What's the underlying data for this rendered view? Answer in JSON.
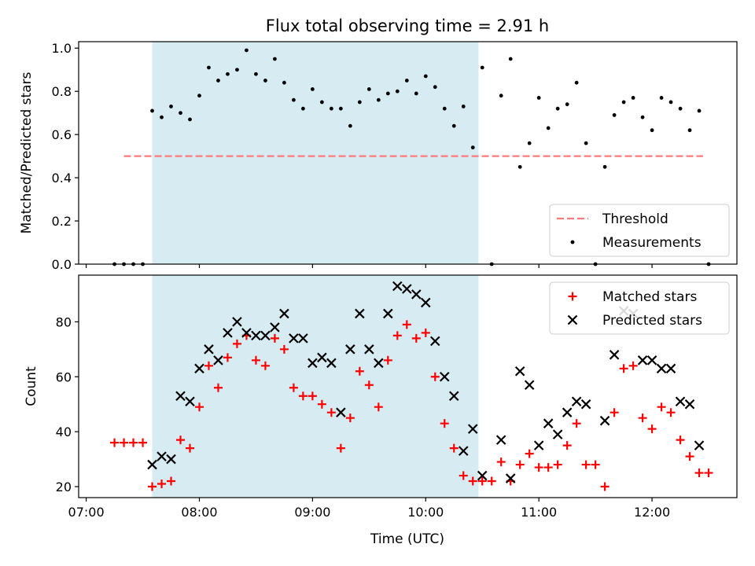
{
  "chart_data": {
    "title": "Flux total observing time = 2.91 h",
    "x_tick_labels": [
      "07:00",
      "08:00",
      "09:00",
      "10:00",
      "11:00",
      "12:00"
    ],
    "xlabel": "Time (UTC)",
    "xlim": [
      "06:56",
      "12:45"
    ],
    "shaded_interval": {
      "start": "07:35",
      "end": "10:28",
      "color": "#add8e6"
    },
    "panels": [
      {
        "type": "scatter",
        "ylabel": "Matched/Predicted stars",
        "ylim": [
          0,
          1.03
        ],
        "y_ticks": [
          "0.0",
          "0.2",
          "0.4",
          "0.6",
          "0.8",
          "1.0"
        ],
        "threshold": {
          "name": "Threshold",
          "value": 0.5,
          "x_start": "07:20",
          "x_end": "12:27",
          "color": "#ff7a7a"
        },
        "legend": {
          "location": "lower right",
          "entries": [
            "Threshold",
            "Measurements"
          ]
        },
        "series": [
          {
            "name": "Measurements",
            "marker": "dot",
            "color": "#000000",
            "points": [
              [
                "07:15",
                0.0
              ],
              [
                "07:20",
                0.0
              ],
              [
                "07:25",
                0.0
              ],
              [
                "07:30",
                0.0
              ],
              [
                "07:35",
                0.71
              ],
              [
                "07:40",
                0.68
              ],
              [
                "07:45",
                0.73
              ],
              [
                "07:50",
                0.7
              ],
              [
                "07:55",
                0.67
              ],
              [
                "08:00",
                0.78
              ],
              [
                "08:05",
                0.91
              ],
              [
                "08:10",
                0.85
              ],
              [
                "08:15",
                0.88
              ],
              [
                "08:20",
                0.9
              ],
              [
                "08:25",
                0.99
              ],
              [
                "08:30",
                0.88
              ],
              [
                "08:35",
                0.85
              ],
              [
                "08:40",
                0.95
              ],
              [
                "08:45",
                0.84
              ],
              [
                "08:50",
                0.76
              ],
              [
                "08:55",
                0.72
              ],
              [
                "09:00",
                0.81
              ],
              [
                "09:05",
                0.75
              ],
              [
                "09:10",
                0.72
              ],
              [
                "09:15",
                0.72
              ],
              [
                "09:20",
                0.64
              ],
              [
                "09:25",
                0.75
              ],
              [
                "09:30",
                0.81
              ],
              [
                "09:35",
                0.76
              ],
              [
                "09:40",
                0.79
              ],
              [
                "09:45",
                0.8
              ],
              [
                "09:50",
                0.85
              ],
              [
                "09:55",
                0.79
              ],
              [
                "10:00",
                0.87
              ],
              [
                "10:05",
                0.82
              ],
              [
                "10:10",
                0.72
              ],
              [
                "10:15",
                0.64
              ],
              [
                "10:20",
                0.73
              ],
              [
                "10:25",
                0.54
              ],
              [
                "10:30",
                0.91
              ],
              [
                "10:35",
                0.0
              ],
              [
                "10:40",
                0.78
              ],
              [
                "10:45",
                0.95
              ],
              [
                "10:50",
                0.45
              ],
              [
                "10:55",
                0.56
              ],
              [
                "11:00",
                0.77
              ],
              [
                "11:05",
                0.63
              ],
              [
                "11:10",
                0.72
              ],
              [
                "11:15",
                0.74
              ],
              [
                "11:20",
                0.84
              ],
              [
                "11:25",
                0.56
              ],
              [
                "11:30",
                0.0
              ],
              [
                "11:35",
                0.45
              ],
              [
                "11:40",
                0.69
              ],
              [
                "11:45",
                0.75
              ],
              [
                "11:50",
                0.77
              ],
              [
                "11:55",
                0.68
              ],
              [
                "12:00",
                0.62
              ],
              [
                "12:05",
                0.77
              ],
              [
                "12:10",
                0.75
              ],
              [
                "12:15",
                0.72
              ],
              [
                "12:20",
                0.62
              ],
              [
                "12:25",
                0.71
              ],
              [
                "12:30",
                0.0
              ]
            ]
          }
        ]
      },
      {
        "type": "scatter",
        "ylabel": "Count",
        "ylim": [
          16,
          97
        ],
        "y_ticks": [
          "20",
          "40",
          "60",
          "80"
        ],
        "legend": {
          "location": "upper right",
          "entries": [
            "Matched stars",
            "Predicted stars"
          ]
        },
        "series": [
          {
            "name": "Matched stars",
            "marker": "plus",
            "color": "#ff0000",
            "points": [
              [
                "07:15",
                36
              ],
              [
                "07:20",
                36
              ],
              [
                "07:25",
                36
              ],
              [
                "07:30",
                36
              ],
              [
                "07:35",
                20
              ],
              [
                "07:40",
                21
              ],
              [
                "07:45",
                22
              ],
              [
                "07:50",
                37
              ],
              [
                "07:55",
                34
              ],
              [
                "08:00",
                49
              ],
              [
                "08:05",
                64
              ],
              [
                "08:10",
                56
              ],
              [
                "08:15",
                67
              ],
              [
                "08:20",
                72
              ],
              [
                "08:25",
                75
              ],
              [
                "08:30",
                66
              ],
              [
                "08:35",
                64
              ],
              [
                "08:40",
                74
              ],
              [
                "08:45",
                70
              ],
              [
                "08:50",
                56
              ],
              [
                "08:55",
                53
              ],
              [
                "09:00",
                53
              ],
              [
                "09:05",
                50
              ],
              [
                "09:10",
                47
              ],
              [
                "09:15",
                34
              ],
              [
                "09:20",
                45
              ],
              [
                "09:25",
                62
              ],
              [
                "09:30",
                57
              ],
              [
                "09:35",
                49
              ],
              [
                "09:40",
                66
              ],
              [
                "09:45",
                75
              ],
              [
                "09:50",
                79
              ],
              [
                "09:55",
                74
              ],
              [
                "10:00",
                76
              ],
              [
                "10:05",
                60
              ],
              [
                "10:10",
                43
              ],
              [
                "10:15",
                34
              ],
              [
                "10:20",
                24
              ],
              [
                "10:25",
                22
              ],
              [
                "10:30",
                22
              ],
              [
                "10:35",
                22
              ],
              [
                "10:40",
                29
              ],
              [
                "10:45",
                22
              ],
              [
                "10:50",
                28
              ],
              [
                "10:55",
                32
              ],
              [
                "11:00",
                27
              ],
              [
                "11:05",
                27
              ],
              [
                "11:10",
                28
              ],
              [
                "11:15",
                35
              ],
              [
                "11:20",
                43
              ],
              [
                "11:25",
                28
              ],
              [
                "11:30",
                28
              ],
              [
                "11:35",
                20
              ],
              [
                "11:40",
                47
              ],
              [
                "11:45",
                63
              ],
              [
                "11:50",
                64
              ],
              [
                "11:55",
                45
              ],
              [
                "12:00",
                41
              ],
              [
                "12:05",
                49
              ],
              [
                "12:10",
                47
              ],
              [
                "12:15",
                37
              ],
              [
                "12:20",
                31
              ],
              [
                "12:25",
                25
              ],
              [
                "12:30",
                25
              ]
            ]
          },
          {
            "name": "Predicted stars",
            "marker": "x",
            "color": "#000000",
            "points": [
              [
                "07:35",
                28
              ],
              [
                "07:40",
                31
              ],
              [
                "07:45",
                30
              ],
              [
                "07:50",
                53
              ],
              [
                "07:55",
                51
              ],
              [
                "08:00",
                63
              ],
              [
                "08:05",
                70
              ],
              [
                "08:10",
                66
              ],
              [
                "08:15",
                76
              ],
              [
                "08:20",
                80
              ],
              [
                "08:25",
                76
              ],
              [
                "08:30",
                75
              ],
              [
                "08:35",
                75
              ],
              [
                "08:40",
                78
              ],
              [
                "08:45",
                83
              ],
              [
                "08:50",
                74
              ],
              [
                "08:55",
                74
              ],
              [
                "09:00",
                65
              ],
              [
                "09:05",
                67
              ],
              [
                "09:10",
                65
              ],
              [
                "09:15",
                47
              ],
              [
                "09:20",
                70
              ],
              [
                "09:25",
                83
              ],
              [
                "09:30",
                70
              ],
              [
                "09:35",
                65
              ],
              [
                "09:40",
                83
              ],
              [
                "09:45",
                93
              ],
              [
                "09:50",
                92
              ],
              [
                "09:55",
                90
              ],
              [
                "10:00",
                87
              ],
              [
                "10:05",
                73
              ],
              [
                "10:10",
                60
              ],
              [
                "10:15",
                53
              ],
              [
                "10:20",
                33
              ],
              [
                "10:25",
                41
              ],
              [
                "10:30",
                24
              ],
              [
                "10:40",
                37
              ],
              [
                "10:45",
                23
              ],
              [
                "10:50",
                62
              ],
              [
                "10:55",
                57
              ],
              [
                "11:00",
                35
              ],
              [
                "11:05",
                43
              ],
              [
                "11:10",
                39
              ],
              [
                "11:15",
                47
              ],
              [
                "11:20",
                51
              ],
              [
                "11:25",
                50
              ],
              [
                "11:35",
                44
              ],
              [
                "11:40",
                68
              ],
              [
                "11:45",
                84
              ],
              [
                "11:50",
                83
              ],
              [
                "11:55",
                66
              ],
              [
                "12:00",
                66
              ],
              [
                "12:05",
                63
              ],
              [
                "12:10",
                63
              ],
              [
                "12:15",
                51
              ],
              [
                "12:20",
                50
              ],
              [
                "12:25",
                35
              ]
            ]
          }
        ]
      }
    ]
  }
}
